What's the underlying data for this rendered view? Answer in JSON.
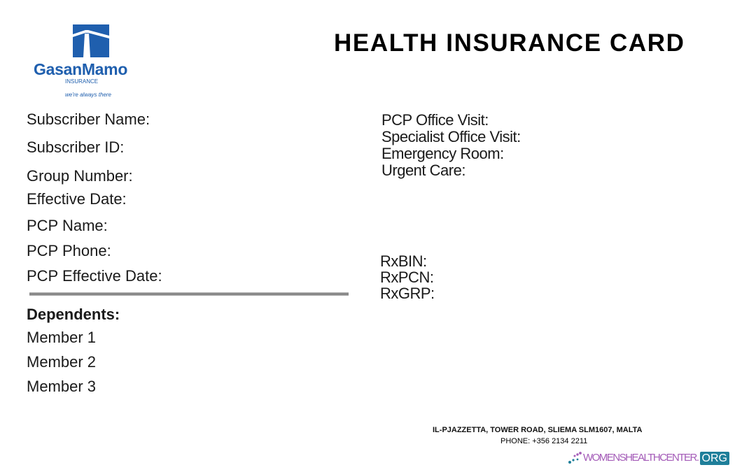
{
  "logo": {
    "name": "GasanMamo",
    "sub": "INSURANCE",
    "tagline": "we're always there",
    "color": "#1f5fae"
  },
  "title": "HEALTH INSURANCE CARD",
  "left_fields": [
    "Subscriber Name:",
    "Subscriber ID:",
    "Group Number:",
    "Effective Date:",
    "PCP Name:",
    "PCP Phone:",
    "PCP Effective Date:"
  ],
  "copays": [
    "PCP Office Visit:",
    "Specialist Office Visit:",
    "Emergency Room:",
    "Urgent Care:"
  ],
  "rx": [
    "RxBIN:",
    "RxPCN:",
    "RxGRP:"
  ],
  "dependents": {
    "heading": "Dependents:",
    "members": [
      "Member 1",
      "Member 2",
      "Member 3"
    ]
  },
  "footer": {
    "address": "IL-PJAZZETTA, TOWER ROAD, SLIEMA SLM1607, MALTA",
    "phone": "PHONE: +356 2134 2211"
  },
  "watermark": {
    "text": "WOMENSHEALTHCENTER.",
    "org": "ORG"
  }
}
